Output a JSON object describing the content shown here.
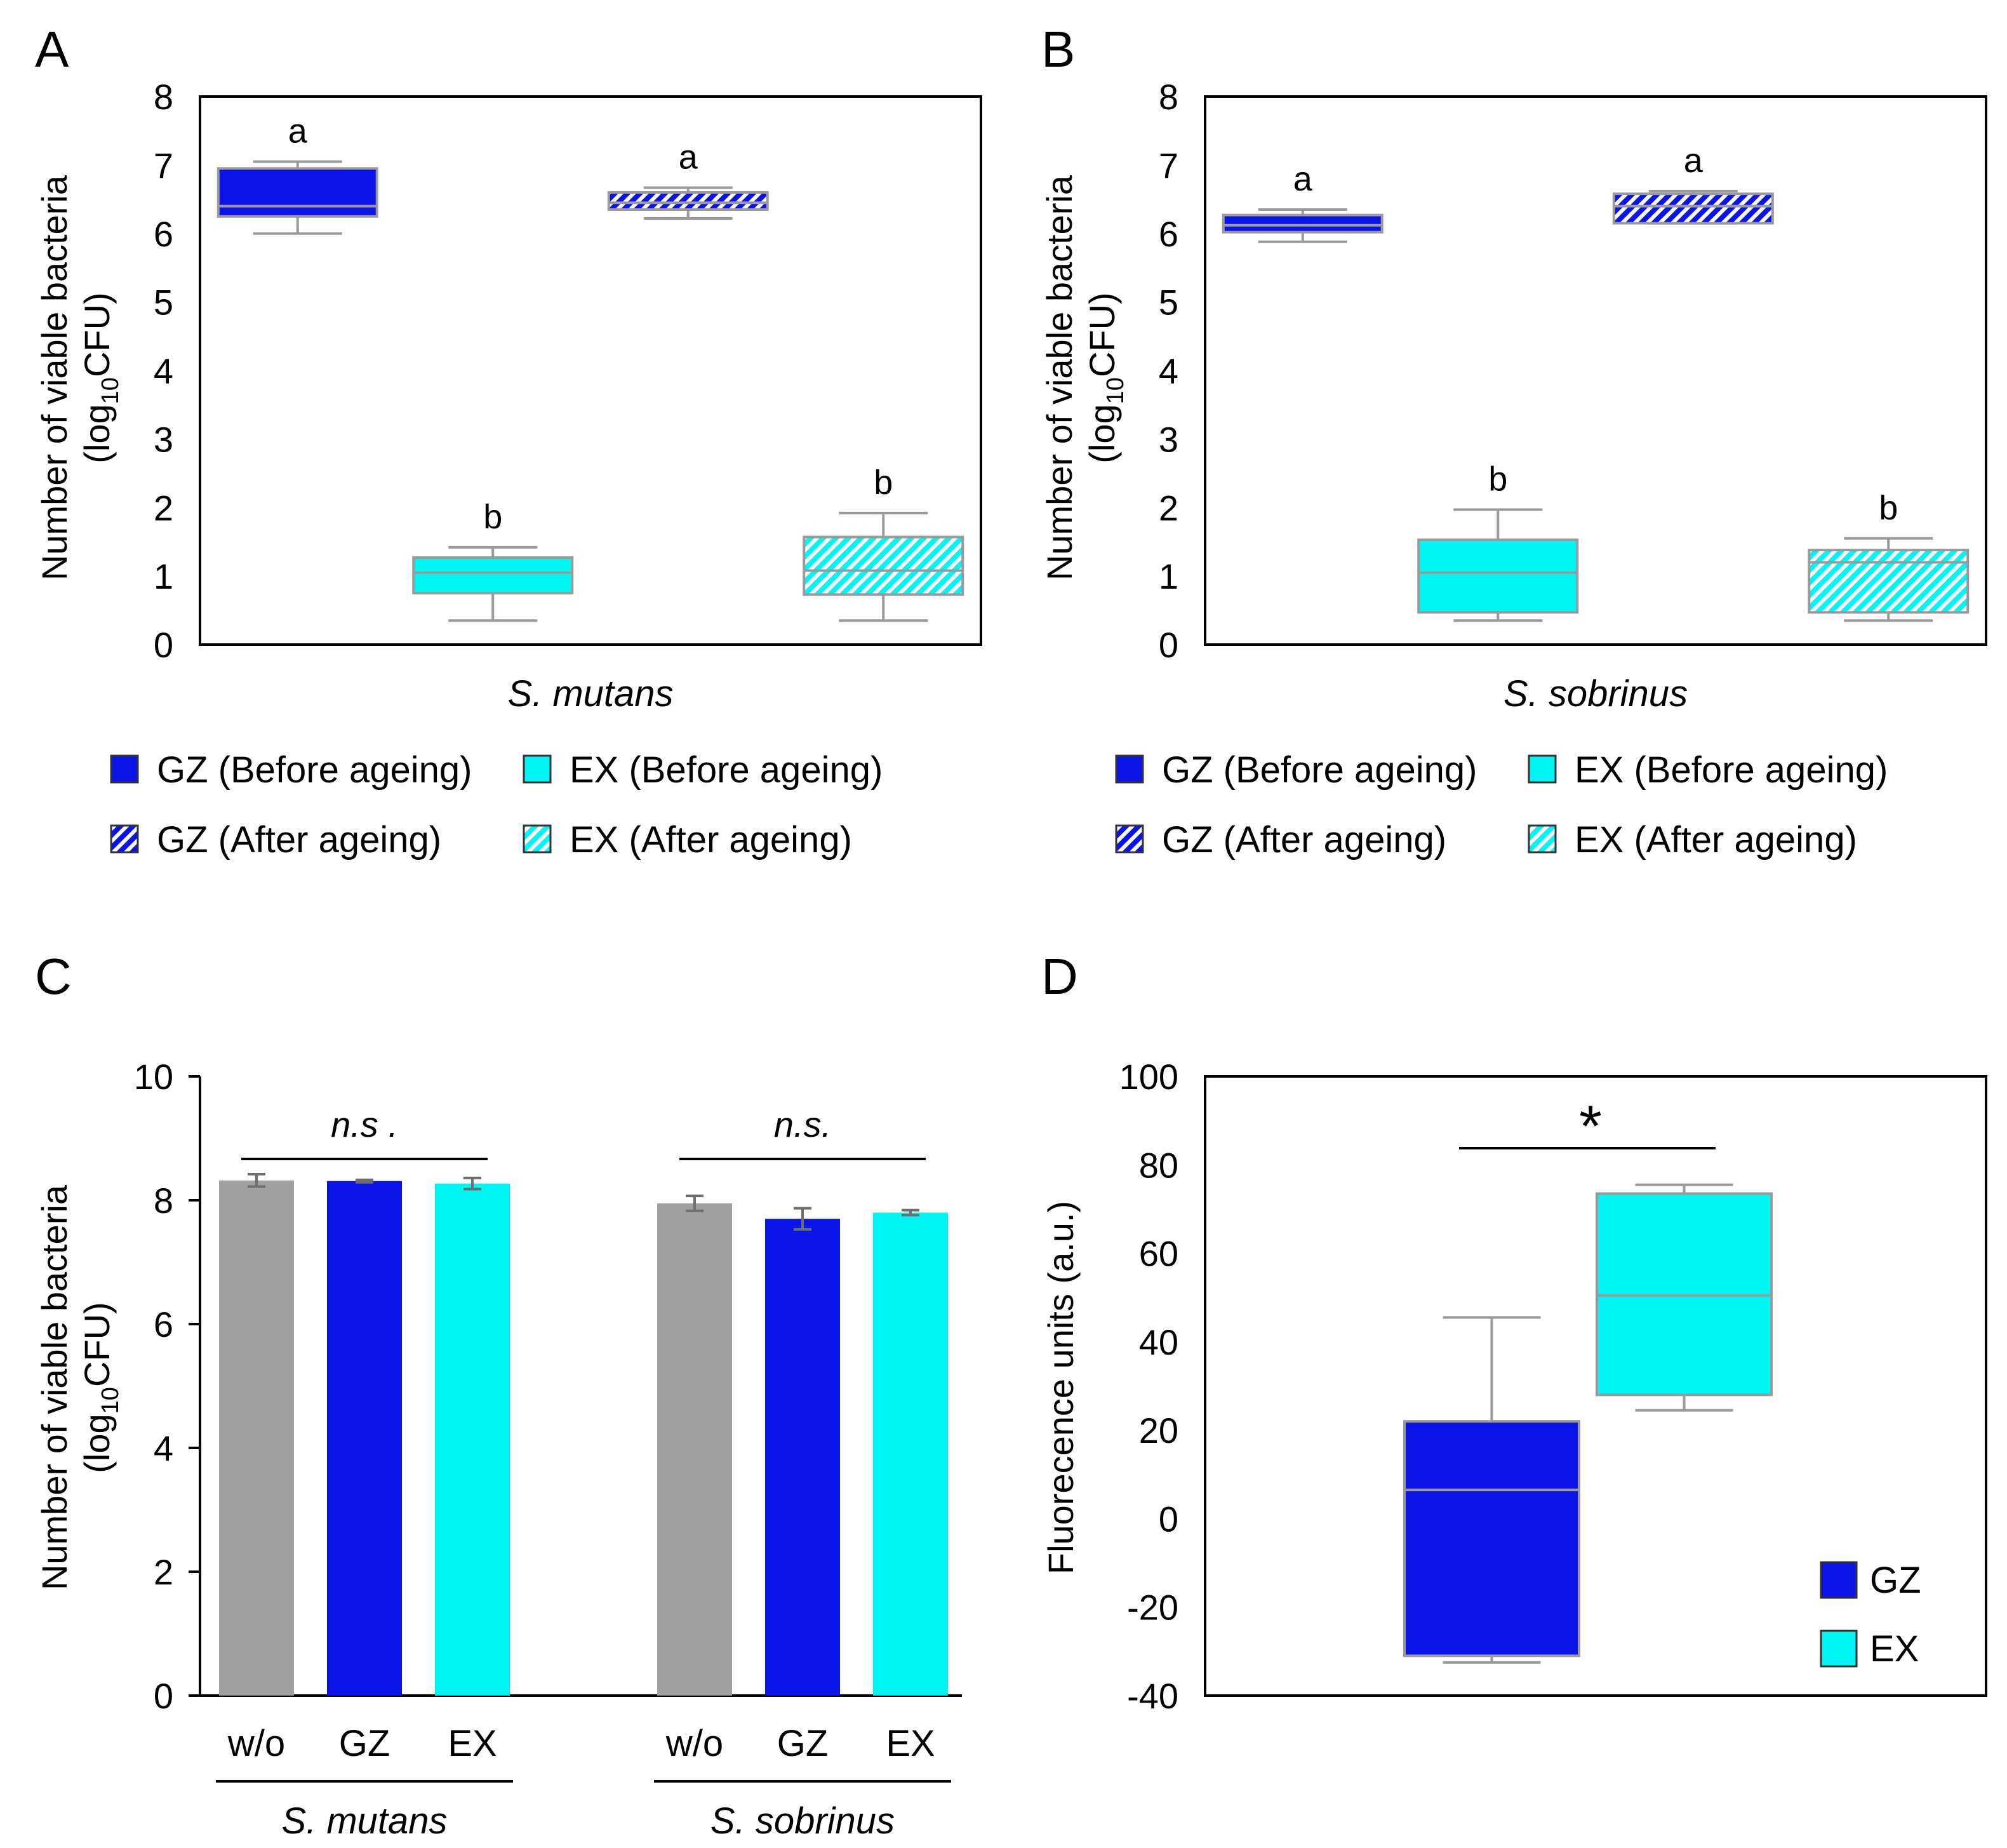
{
  "colors": {
    "gz": "#0a14e6",
    "ex": "#00f5f5",
    "wo": "#a0a0a0",
    "whisker": "#9a9a9a",
    "axis": "#000000"
  },
  "chart_data": [
    {
      "panel": "A",
      "type": "box",
      "xlabel": "S. mutans",
      "ylabel_line1": "Number of viable bacteria",
      "ylabel_line2_pre": "(log",
      "ylabel_line2_sub": "10",
      "ylabel_line2_post": "CFU)",
      "ylim": [
        0,
        8
      ],
      "yticks": [
        "0",
        "1",
        "2",
        "3",
        "4",
        "5",
        "6",
        "7",
        "8"
      ],
      "boxes": [
        {
          "name": "GZ (Before ageing)",
          "group": "gz",
          "hatch": false,
          "min": 6.0,
          "q1": 6.25,
          "median": 6.4,
          "q3": 6.95,
          "max": 7.05,
          "label": "a"
        },
        {
          "name": "EX (Before ageing)",
          "group": "ex",
          "hatch": false,
          "min": 0.35,
          "q1": 0.75,
          "median": 1.05,
          "q3": 1.27,
          "max": 1.42,
          "label": "b"
        },
        {
          "name": "GZ (After ageing)",
          "group": "gz",
          "hatch": true,
          "min": 6.22,
          "q1": 6.35,
          "median": 6.45,
          "q3": 6.6,
          "max": 6.67,
          "label": "a"
        },
        {
          "name": "EX (After ageing)",
          "group": "ex",
          "hatch": true,
          "min": 0.35,
          "q1": 0.73,
          "median": 1.08,
          "q3": 1.57,
          "max": 1.92,
          "label": "b"
        }
      ],
      "legend": [
        {
          "label": "GZ (Before ageing)",
          "group": "gz",
          "hatch": false
        },
        {
          "label": "EX (Before ageing)",
          "group": "ex",
          "hatch": false
        },
        {
          "label": "GZ (After ageing)",
          "group": "gz",
          "hatch": true
        },
        {
          "label": "EX (After ageing)",
          "group": "ex",
          "hatch": true
        }
      ]
    },
    {
      "panel": "B",
      "type": "box",
      "xlabel": "S. sobrinus",
      "ylabel_line1": "Number of viable bacteria",
      "ylabel_line2_pre": "(log",
      "ylabel_line2_sub": "10",
      "ylabel_line2_post": "CFU)",
      "ylim": [
        0,
        8
      ],
      "yticks": [
        "0",
        "1",
        "2",
        "3",
        "4",
        "5",
        "6",
        "7",
        "8"
      ],
      "boxes": [
        {
          "name": "GZ (Before ageing)",
          "group": "gz",
          "hatch": false,
          "min": 5.88,
          "q1": 6.02,
          "median": 6.12,
          "q3": 6.27,
          "max": 6.35,
          "label": "a"
        },
        {
          "name": "EX (Before ageing)",
          "group": "ex",
          "hatch": false,
          "min": 0.35,
          "q1": 0.47,
          "median": 1.05,
          "q3": 1.53,
          "max": 1.97,
          "label": "b"
        },
        {
          "name": "GZ (After ageing)",
          "group": "gz",
          "hatch": true,
          "min": 6.15,
          "q1": 6.15,
          "median": 6.4,
          "q3": 6.58,
          "max": 6.62,
          "label": "a"
        },
        {
          "name": "EX (After ageing)",
          "group": "ex",
          "hatch": true,
          "min": 0.35,
          "q1": 0.47,
          "median": 1.2,
          "q3": 1.38,
          "max": 1.55,
          "label": "b"
        }
      ],
      "legend": [
        {
          "label": "GZ (Before ageing)",
          "group": "gz",
          "hatch": false
        },
        {
          "label": "EX (Before ageing)",
          "group": "ex",
          "hatch": false
        },
        {
          "label": "GZ (After ageing)",
          "group": "gz",
          "hatch": true
        },
        {
          "label": "EX (After ageing)",
          "group": "ex",
          "hatch": true
        }
      ]
    },
    {
      "panel": "C",
      "type": "bar",
      "ylabel_line1": "Number of viable bacteria",
      "ylabel_line2_pre": "(log",
      "ylabel_line2_sub": "10",
      "ylabel_line2_post": "CFU)",
      "ylim": [
        0,
        10
      ],
      "yticks": [
        "0",
        "2",
        "4",
        "6",
        "8",
        "10"
      ],
      "groups": [
        {
          "name": "S. mutans",
          "significance": "n.s .",
          "bars": [
            {
              "category": "w/o",
              "group": "wo",
              "value": 8.32,
              "error": 0.1
            },
            {
              "category": "GZ",
              "group": "gz",
              "value": 8.31,
              "error": 0.02
            },
            {
              "category": "EX",
              "group": "ex",
              "value": 8.27,
              "error": 0.09
            }
          ]
        },
        {
          "name": "S. sobrinus",
          "significance": "n.s.",
          "bars": [
            {
              "category": "w/o",
              "group": "wo",
              "value": 7.95,
              "error": 0.12
            },
            {
              "category": "GZ",
              "group": "gz",
              "value": 7.7,
              "error": 0.17
            },
            {
              "category": "EX",
              "group": "ex",
              "value": 7.8,
              "error": 0.04
            }
          ]
        }
      ]
    },
    {
      "panel": "D",
      "type": "box",
      "ylabel": "Fluorecence units (a.u.)",
      "ylim": [
        -40,
        100
      ],
      "yticks": [
        "-40",
        "-20",
        "0",
        "20",
        "40",
        "60",
        "80",
        "100"
      ],
      "significance": "*",
      "boxes": [
        {
          "name": "GZ",
          "group": "gz",
          "hatch": false,
          "min": -32.5,
          "q1": -31,
          "median": 6.5,
          "q3": 22,
          "max": 45.5
        },
        {
          "name": "EX",
          "group": "ex",
          "hatch": false,
          "min": 24.5,
          "q1": 28,
          "median": 50.5,
          "q3": 73.5,
          "max": 75.5
        }
      ],
      "legend": [
        {
          "label": "GZ",
          "group": "gz",
          "hatch": false
        },
        {
          "label": "EX",
          "group": "ex",
          "hatch": false
        }
      ]
    }
  ]
}
